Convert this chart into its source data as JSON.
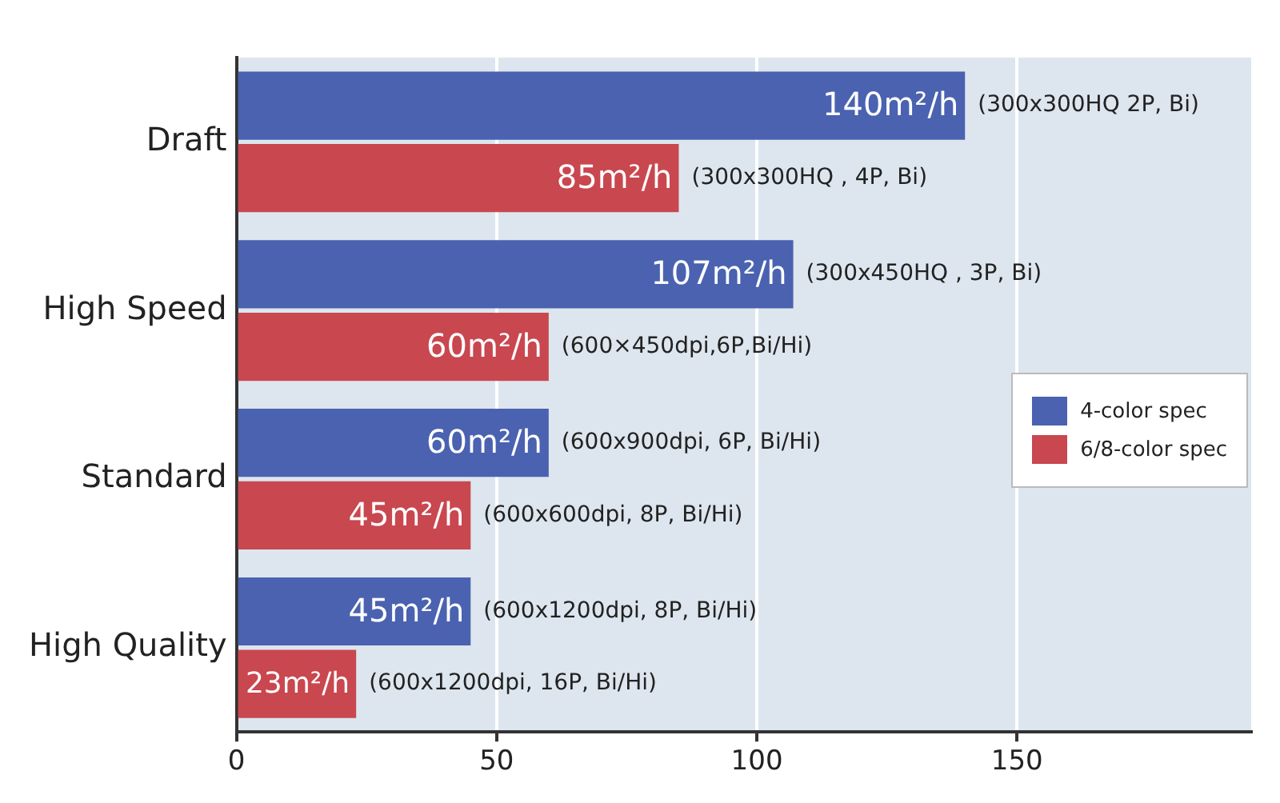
{
  "chart_data": {
    "type": "bar",
    "orientation": "horizontal",
    "categories": [
      "Draft",
      "High Speed",
      "Standard",
      "High Quality"
    ],
    "series": [
      {
        "name": "4-color spec",
        "color": "#4a62b0",
        "values": [
          140,
          107,
          60,
          45
        ],
        "value_labels": [
          "140m²/h",
          "107m²/h",
          "60m²/h",
          "45m²/h"
        ]
      },
      {
        "name": "6/8-color spec",
        "color": "#c9474f",
        "values": [
          85,
          60,
          45,
          23
        ],
        "value_labels": [
          "85m²/h",
          "60m²/h",
          "45m²/h",
          "23m²/h"
        ]
      }
    ],
    "xlim": [
      0,
      195
    ],
    "xticks": [
      0,
      50,
      100,
      150
    ],
    "grid": "x",
    "legend": "right",
    "annotations": [
      {
        "text": "(300x300HQ 2P, Bi)",
        "x": 140,
        "y": "Draft"
      },
      {
        "text": "(300x300HQ , 4P, Bi)",
        "x": 85,
        "y": "Draft"
      },
      {
        "text": "(300x450HQ , 3P, Bi)",
        "x": 107,
        "y": "High Speed"
      },
      {
        "text": "(600×450dpi,6P,Bi/Hi)",
        "x": 60,
        "y": "High Speed"
      },
      {
        "text": "(600x900dpi, 6P, Bi/Hi)",
        "x": 60,
        "y": "Standard"
      },
      {
        "text": "(600x600dpi, 8P, Bi/Hi)",
        "x": 45,
        "y": "Standard"
      },
      {
        "text": "(600x1200dpi, 8P, Bi/Hi)",
        "x": 45,
        "y": "High Quality"
      },
      {
        "text": "(600x1200dpi, 16P, Bi/Hi)",
        "x": 23,
        "y": "High Quality"
      }
    ]
  }
}
